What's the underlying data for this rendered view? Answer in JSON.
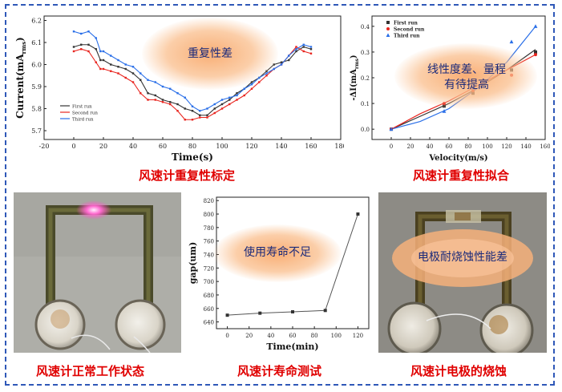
{
  "captions": {
    "c1": "风速计重复性标定",
    "c2": "风速计重复性拟合",
    "c3": "风速计正常工作状态",
    "c4": "风速计寿命测试",
    "c5": "风速计电极的烧蚀"
  },
  "notes": {
    "n1": "重复性差",
    "n2_line1": "线性度差、量程",
    "n2_line2": "有待提高",
    "n4": "使用寿命不足",
    "n5": "电极耐烧蚀性能差"
  },
  "colors": {
    "black": "#333333",
    "red": "#e8251f",
    "blue": "#2a6fe8",
    "frame": "#2f58b8",
    "caption": "#e00000"
  },
  "chart_data": [
    {
      "type": "line",
      "xlabel": "Time(s)",
      "ylabel": "Current(mA",
      "ylabel_sub": "rms",
      "ylabel_end": ")",
      "xlim": [
        -20,
        180
      ],
      "ylim": [
        5.66,
        6.22
      ],
      "xticks": [
        "-20",
        "0",
        "20",
        "40",
        "60",
        "80",
        "100",
        "120",
        "140",
        "160",
        "180"
      ],
      "yticks": [
        "5.7",
        "5.8",
        "5.9",
        "6.0",
        "6.1",
        "6.2"
      ],
      "series": [
        {
          "name": "First run",
          "color": "#333333",
          "x": [
            0,
            5,
            10,
            15,
            18,
            20,
            25,
            30,
            35,
            40,
            45,
            50,
            55,
            60,
            65,
            70,
            75,
            80,
            85,
            90,
            95,
            100,
            105,
            110,
            115,
            120,
            125,
            130,
            135,
            140,
            145,
            150,
            155,
            160
          ],
          "y": [
            6.08,
            6.09,
            6.09,
            6.07,
            6.02,
            6.02,
            6.0,
            5.99,
            5.98,
            5.96,
            5.93,
            5.87,
            5.86,
            5.84,
            5.83,
            5.82,
            5.8,
            5.79,
            5.77,
            5.77,
            5.8,
            5.82,
            5.84,
            5.87,
            5.89,
            5.92,
            5.94,
            5.97,
            6.0,
            6.01,
            6.02,
            6.06,
            6.08,
            6.07
          ]
        },
        {
          "name": "Second run",
          "color": "#e8251f",
          "x": [
            0,
            5,
            10,
            15,
            18,
            20,
            25,
            30,
            35,
            40,
            45,
            50,
            55,
            60,
            65,
            70,
            75,
            80,
            85,
            90,
            95,
            100,
            105,
            110,
            115,
            120,
            125,
            130,
            135,
            140,
            145,
            150,
            155,
            160
          ],
          "y": [
            6.06,
            6.07,
            6.06,
            6.01,
            5.98,
            5.98,
            5.97,
            5.96,
            5.94,
            5.92,
            5.87,
            5.84,
            5.84,
            5.83,
            5.82,
            5.79,
            5.75,
            5.75,
            5.76,
            5.76,
            5.78,
            5.8,
            5.82,
            5.84,
            5.86,
            5.89,
            5.92,
            5.95,
            5.98,
            6.0,
            6.04,
            6.08,
            6.06,
            6.05
          ]
        },
        {
          "name": "Third run",
          "color": "#2a6fe8",
          "x": [
            0,
            5,
            10,
            15,
            18,
            20,
            25,
            30,
            35,
            40,
            45,
            50,
            55,
            60,
            65,
            70,
            75,
            80,
            85,
            90,
            95,
            100,
            105,
            110,
            115,
            120,
            125,
            130,
            135,
            140,
            145,
            150,
            155,
            160
          ],
          "y": [
            6.15,
            6.14,
            6.15,
            6.12,
            6.06,
            6.06,
            6.04,
            6.02,
            6.0,
            5.99,
            5.96,
            5.93,
            5.92,
            5.9,
            5.89,
            5.87,
            5.85,
            5.81,
            5.79,
            5.8,
            5.82,
            5.84,
            5.85,
            5.86,
            5.89,
            5.91,
            5.94,
            5.96,
            5.98,
            6.0,
            6.04,
            6.07,
            6.09,
            6.08
          ]
        }
      ]
    },
    {
      "type": "scatter",
      "xlabel": "Velocity(m/s)",
      "ylabel": "-ΔI(mA",
      "ylabel_sub": "rms",
      "ylabel_end": ")",
      "xlim": [
        -20,
        160
      ],
      "ylim": [
        -0.04,
        0.44
      ],
      "xticks": [
        "0",
        "20",
        "40",
        "60",
        "80",
        "100",
        "120",
        "140",
        "160"
      ],
      "yticks": [
        "0.0",
        "0.1",
        "0.2",
        "0.3",
        "0.4"
      ],
      "series": [
        {
          "name": "First run",
          "color": "#333333",
          "marker": "square",
          "x": [
            0,
            55,
            85,
            125,
            150
          ],
          "y": [
            0.0,
            0.09,
            0.14,
            0.23,
            0.3
          ]
        },
        {
          "name": "Second run",
          "color": "#e8251f",
          "marker": "circle",
          "x": [
            0,
            55,
            85,
            125,
            150
          ],
          "y": [
            0.0,
            0.1,
            0.15,
            0.21,
            0.29
          ]
        },
        {
          "name": "Third run",
          "color": "#2a6fe8",
          "marker": "triangle",
          "x": [
            0,
            55,
            85,
            125,
            150
          ],
          "y": [
            0.0,
            0.07,
            0.16,
            0.34,
            0.4
          ]
        }
      ],
      "fits": [
        {
          "color": "#333333",
          "x": [
            0,
            30,
            60,
            90,
            120,
            150
          ],
          "y": [
            0.0,
            0.05,
            0.1,
            0.16,
            0.23,
            0.31
          ]
        },
        {
          "color": "#e8251f",
          "x": [
            0,
            30,
            60,
            90,
            120,
            150
          ],
          "y": [
            0.0,
            0.06,
            0.11,
            0.17,
            0.23,
            0.29
          ]
        },
        {
          "color": "#2a6fe8",
          "x": [
            0,
            30,
            60,
            90,
            120,
            150
          ],
          "y": [
            0.0,
            0.03,
            0.08,
            0.16,
            0.26,
            0.4
          ]
        }
      ]
    },
    {
      "type": "line",
      "xlabel": "Time(min)",
      "ylabel": "gap(um)",
      "xlim": [
        -10,
        130
      ],
      "ylim": [
        630,
        825
      ],
      "xticks": [
        "0",
        "20",
        "40",
        "60",
        "80",
        "100",
        "120"
      ],
      "yticks": [
        "640",
        "660",
        "680",
        "700",
        "720",
        "740",
        "760",
        "780",
        "800",
        "820"
      ],
      "series": [
        {
          "name": "",
          "color": "#555555",
          "x": [
            0,
            30,
            60,
            90,
            120
          ],
          "y": [
            650,
            653,
            655,
            657,
            800
          ]
        }
      ]
    }
  ]
}
